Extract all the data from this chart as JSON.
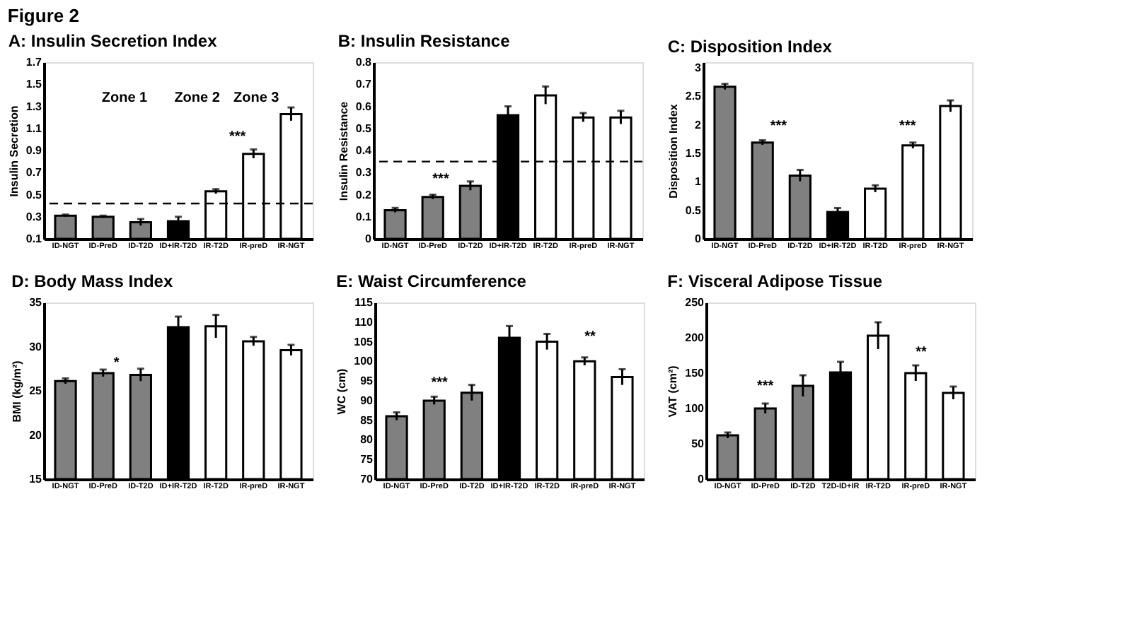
{
  "chart_data": [
    {
      "type": "bar",
      "title": "A: Insulin Secretion Index",
      "ylabel": "Insulin Secretion",
      "categories": [
        "ID-NGT",
        "ID-PreD",
        "ID-T2D",
        "ID+IR-T2D",
        "IR-T2D",
        "IR-preD",
        "IR-NGT"
      ],
      "values": [
        0.31,
        0.3,
        0.25,
        0.26,
        0.53,
        0.87,
        1.23
      ],
      "errors": [
        0.01,
        0.01,
        0.03,
        0.04,
        0.02,
        0.04,
        0.06
      ],
      "colors": [
        "#808080",
        "#808080",
        "#808080",
        "#000000",
        "#ffffff",
        "#ffffff",
        "#ffffff"
      ],
      "ylim": [
        0.1,
        1.7
      ],
      "yticks": [
        0.1,
        0.3,
        0.5,
        0.7,
        0.9,
        1.1,
        1.3,
        1.5,
        1.7
      ],
      "ref_lines": [
        {
          "axis": "y",
          "value": 0.42,
          "line_style": "dashed"
        }
      ],
      "annotations": [
        "Figure 2",
        "Zone 1",
        "Zone 2",
        "Zone 3",
        "***"
      ]
    },
    {
      "type": "bar",
      "title": "B: Insulin Resistance",
      "ylabel": "Insulin Resistance",
      "categories": [
        "ID-NGT",
        "ID-PreD",
        "ID-T2D",
        "ID+IR-T2D",
        "IR-T2D",
        "IR-preD",
        "IR-NGT"
      ],
      "values": [
        0.13,
        0.19,
        0.24,
        0.56,
        0.65,
        0.55,
        0.55
      ],
      "errors": [
        0.01,
        0.01,
        0.02,
        0.04,
        0.04,
        0.02,
        0.03
      ],
      "colors": [
        "#808080",
        "#808080",
        "#808080",
        "#000000",
        "#ffffff",
        "#ffffff",
        "#ffffff"
      ],
      "ylim": [
        0,
        0.8
      ],
      "yticks": [
        0,
        0.1,
        0.2,
        0.3,
        0.4,
        0.5,
        0.6,
        0.7,
        0.8
      ],
      "ref_lines": [
        {
          "axis": "y",
          "value": 0.35,
          "line_style": "dashed"
        }
      ],
      "annotations": [
        "***"
      ]
    },
    {
      "type": "bar",
      "title": "C: Disposition Index",
      "ylabel": "Disposition Index",
      "categories": [
        "ID-NGT",
        "ID-PreD",
        "ID-T2D",
        "ID+IR-T2D",
        "IR-T2D",
        "IR-preD",
        "IR-NGT"
      ],
      "values": [
        2.67,
        1.69,
        1.11,
        0.47,
        0.88,
        1.64,
        2.33
      ],
      "errors": [
        0.05,
        0.04,
        0.1,
        0.07,
        0.06,
        0.05,
        0.1
      ],
      "colors": [
        "#808080",
        "#808080",
        "#808080",
        "#000000",
        "#ffffff",
        "#ffffff",
        "#ffffff"
      ],
      "ylim": [
        0,
        3.1
      ],
      "yticks": [
        0,
        0.5,
        1,
        1.5,
        2,
        2.5,
        3
      ],
      "annotations": [
        "***",
        "***"
      ]
    },
    {
      "type": "bar",
      "title": "D: Body Mass Index",
      "ylabel": "BMI (kg/m²)",
      "categories": [
        "ID-NGT",
        "ID-PreD",
        "ID-T2D",
        "ID+IR-T2D",
        "IR-T2D",
        "IR-preD",
        "IR-NGT"
      ],
      "values": [
        26.1,
        27.0,
        26.8,
        32.2,
        32.3,
        30.6,
        29.6
      ],
      "errors": [
        0.3,
        0.4,
        0.7,
        1.2,
        1.3,
        0.5,
        0.6
      ],
      "colors": [
        "#808080",
        "#808080",
        "#808080",
        "#000000",
        "#ffffff",
        "#ffffff",
        "#ffffff"
      ],
      "ylim": [
        15,
        35
      ],
      "yticks": [
        15,
        20,
        25,
        30,
        35
      ],
      "annotations": [
        "*"
      ]
    },
    {
      "type": "bar",
      "title": "E: Waist Circumference",
      "ylabel": "WC (cm)",
      "categories": [
        "ID-NGT",
        "ID-PreD",
        "ID-T2D",
        "ID+IR-T2D",
        "IR-T2D",
        "IR-preD",
        "IR-NGT"
      ],
      "values": [
        86,
        90,
        92,
        106,
        105,
        100,
        96
      ],
      "errors": [
        1,
        1,
        2,
        3,
        2,
        1,
        2
      ],
      "colors": [
        "#808080",
        "#808080",
        "#808080",
        "#000000",
        "#ffffff",
        "#ffffff",
        "#ffffff"
      ],
      "ylim": [
        70,
        115
      ],
      "yticks": [
        70,
        75,
        80,
        85,
        90,
        95,
        100,
        105,
        110,
        115
      ],
      "annotations": [
        "***",
        "**"
      ]
    },
    {
      "type": "bar",
      "title": "F: Visceral Adipose Tissue",
      "ylabel": "VAT (cm²)",
      "categories": [
        "ID-NGT",
        "ID-PreD",
        "ID-T2D",
        "T2D-ID+IR",
        "IR-T2D",
        "IR-preD",
        "IR-NGT"
      ],
      "values": [
        62,
        100,
        132,
        151,
        203,
        150,
        122
      ],
      "errors": [
        4,
        7,
        15,
        15,
        19,
        11,
        9
      ],
      "colors": [
        "#808080",
        "#808080",
        "#808080",
        "#000000",
        "#ffffff",
        "#ffffff",
        "#ffffff"
      ],
      "ylim": [
        0,
        250
      ],
      "yticks": [
        0,
        50,
        100,
        150,
        200,
        250
      ],
      "annotations": [
        "***",
        "**"
      ]
    }
  ]
}
